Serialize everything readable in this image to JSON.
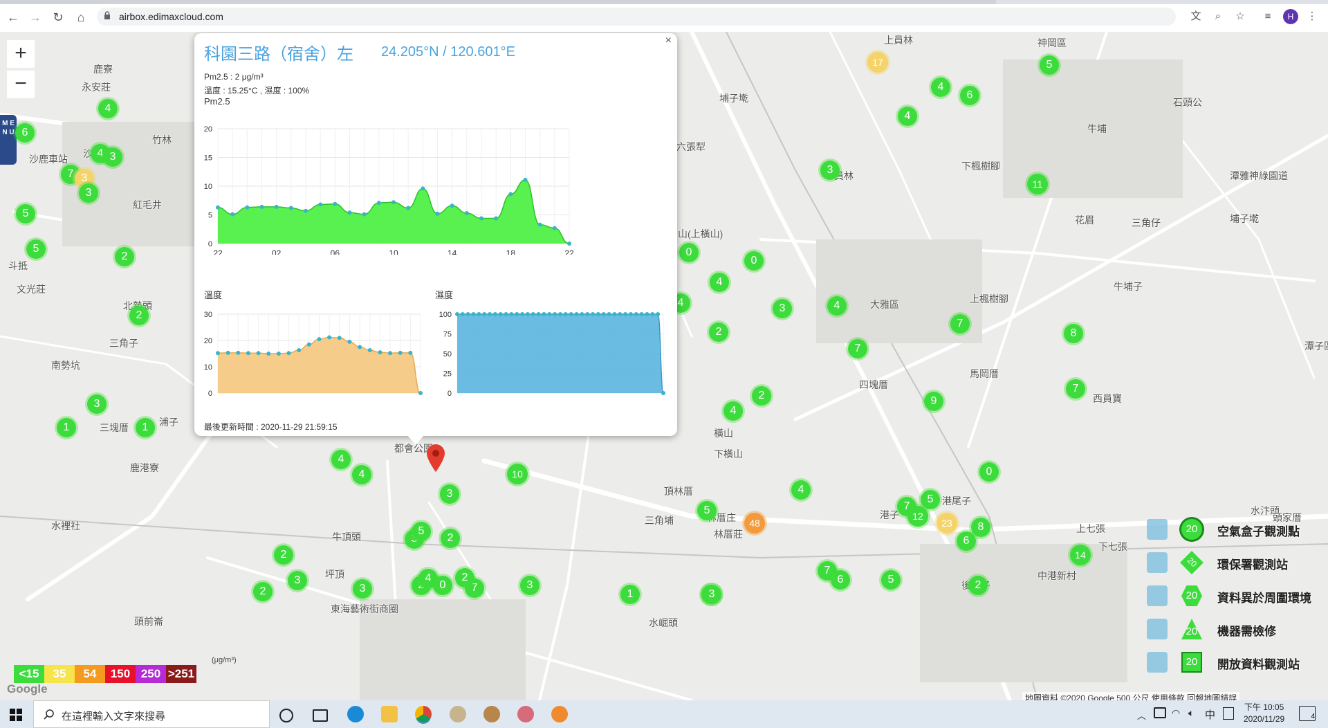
{
  "browser": {
    "url": "airbox.edimaxcloud.com",
    "avatar_letter": "H",
    "icons": [
      "back-icon",
      "forward-icon",
      "reload-icon",
      "home-icon",
      "translate-icon",
      "zoom-icon",
      "star-icon",
      "reading-list-icon",
      "kebab-menu-icon"
    ]
  },
  "map": {
    "zoom_in": "+",
    "zoom_out": "−",
    "menu_label": "M E N U",
    "places": [
      {
        "text": "鹿寮"
      },
      {
        "text": "永安莊"
      },
      {
        "text": "竹林"
      },
      {
        "text": "沙鹿車站"
      },
      {
        "text": "沙鹿"
      },
      {
        "text": "紅毛井"
      },
      {
        "text": "斗抵"
      },
      {
        "text": "文光莊"
      },
      {
        "text": "北勢頭"
      },
      {
        "text": "三角子"
      },
      {
        "text": "南勢坑"
      },
      {
        "text": "三塊厝"
      },
      {
        "text": "浦子"
      },
      {
        "text": "鹿港寮"
      },
      {
        "text": "水裡社"
      },
      {
        "text": "牛頂頭"
      },
      {
        "text": "坪頂"
      },
      {
        "text": "東海藝術街商圈"
      },
      {
        "text": "頭前崙"
      },
      {
        "text": "都會公園"
      },
      {
        "text": "頂林厝"
      },
      {
        "text": "三角埔"
      },
      {
        "text": "林厝庄"
      },
      {
        "text": "林厝莊"
      },
      {
        "text": "水崛頭"
      },
      {
        "text": "港子"
      },
      {
        "text": "港尾子"
      },
      {
        "text": "後莊子"
      },
      {
        "text": "中港新村"
      },
      {
        "text": "上七張"
      },
      {
        "text": "下七張"
      },
      {
        "text": "水汴頭"
      },
      {
        "text": "頭家厝"
      },
      {
        "text": "上員林"
      },
      {
        "text": "神岡區"
      },
      {
        "text": "石頭公"
      },
      {
        "text": "牛埔"
      },
      {
        "text": "埔子墘"
      },
      {
        "text": "六張犁"
      },
      {
        "text": "下員林"
      },
      {
        "text": "下楓樹腳"
      },
      {
        "text": "潭雅神綠園道"
      },
      {
        "text": "秀山(上橫山)"
      },
      {
        "text": "花眉"
      },
      {
        "text": "三角仔"
      },
      {
        "text": "埔子墘"
      },
      {
        "text": "大雅區"
      },
      {
        "text": "上楓樹腳"
      },
      {
        "text": "牛埔子"
      },
      {
        "text": "馬岡厝"
      },
      {
        "text": "四塊厝"
      },
      {
        "text": "西員寶"
      },
      {
        "text": "橫山"
      },
      {
        "text": "下橫山"
      },
      {
        "text": "潭子區"
      }
    ],
    "markers": [
      {
        "v": "4",
        "c": "green"
      },
      {
        "v": "6",
        "c": "green"
      },
      {
        "v": "4",
        "c": "green"
      },
      {
        "v": "3",
        "c": "green"
      },
      {
        "v": "7",
        "c": "green"
      },
      {
        "v": "3",
        "c": "yellow"
      },
      {
        "v": "3",
        "c": "green"
      },
      {
        "v": "5",
        "c": "green"
      },
      {
        "v": "5",
        "c": "green"
      },
      {
        "v": "2",
        "c": "green"
      },
      {
        "v": "2",
        "c": "green"
      },
      {
        "v": "3",
        "c": "green"
      },
      {
        "v": "1",
        "c": "green"
      },
      {
        "v": "1",
        "c": "green"
      },
      {
        "v": "2",
        "c": "green"
      },
      {
        "v": "4",
        "c": "green"
      },
      {
        "v": "4",
        "c": "green"
      },
      {
        "v": "3",
        "c": "green"
      },
      {
        "v": "2",
        "c": "green"
      },
      {
        "v": "3",
        "c": "green"
      },
      {
        "v": "3",
        "c": "green"
      },
      {
        "v": "2",
        "c": "green"
      },
      {
        "v": "3",
        "c": "green"
      },
      {
        "v": "5",
        "c": "green"
      },
      {
        "v": "2",
        "c": "green"
      },
      {
        "v": "4",
        "c": "green"
      },
      {
        "v": "0",
        "c": "green"
      },
      {
        "v": "7",
        "c": "green"
      },
      {
        "v": "2",
        "c": "green"
      },
      {
        "v": "3",
        "c": "green"
      },
      {
        "v": "10",
        "c": "green"
      },
      {
        "v": "2",
        "c": "green"
      },
      {
        "v": "1",
        "c": "green"
      },
      {
        "v": "3",
        "c": "green"
      },
      {
        "v": "2",
        "c": "green"
      },
      {
        "v": "1",
        "c": "green"
      },
      {
        "v": "0",
        "c": "green"
      },
      {
        "v": "0",
        "c": "green"
      },
      {
        "v": "0",
        "c": "green"
      },
      {
        "v": "4",
        "c": "green"
      },
      {
        "v": "4",
        "c": "green"
      },
      {
        "v": "2",
        "c": "green"
      },
      {
        "v": "3",
        "c": "green"
      },
      {
        "v": "4",
        "c": "green"
      },
      {
        "v": "7",
        "c": "green"
      },
      {
        "v": "2",
        "c": "green"
      },
      {
        "v": "4",
        "c": "green"
      },
      {
        "v": "9",
        "c": "green"
      },
      {
        "v": "4",
        "c": "green"
      },
      {
        "v": "5",
        "c": "green"
      },
      {
        "v": "48",
        "c": "orange"
      },
      {
        "v": "7",
        "c": "green"
      },
      {
        "v": "6",
        "c": "green"
      },
      {
        "v": "5",
        "c": "green"
      },
      {
        "v": "3",
        "c": "green"
      },
      {
        "v": "17",
        "c": "yellow"
      },
      {
        "v": "4",
        "c": "green"
      },
      {
        "v": "6",
        "c": "green"
      },
      {
        "v": "4",
        "c": "green"
      },
      {
        "v": "5",
        "c": "green"
      },
      {
        "v": "3",
        "c": "green"
      },
      {
        "v": "11",
        "c": "green"
      },
      {
        "v": "7",
        "c": "green"
      },
      {
        "v": "8",
        "c": "green"
      },
      {
        "v": "7",
        "c": "green"
      },
      {
        "v": "5",
        "c": "green"
      },
      {
        "v": "7",
        "c": "green"
      },
      {
        "v": "12",
        "c": "green"
      },
      {
        "v": "23",
        "c": "yellow"
      },
      {
        "v": "8",
        "c": "green"
      },
      {
        "v": "6",
        "c": "green"
      },
      {
        "v": "0",
        "c": "green"
      },
      {
        "v": "2",
        "c": "green"
      },
      {
        "v": "14",
        "c": "green"
      },
      {
        "v": "2",
        "c": "green"
      },
      {
        "v": "1",
        "c": "green"
      }
    ],
    "popup": {
      "title": "科園三路（宿舍）左",
      "coord": "24.205°N / 120.601°E",
      "pm_line": "Pm2.5 : 2 μg/m³",
      "temp_line": "溫度 : 15.25°C , 濕度 : 100%",
      "chart1_label": "Pm2.5",
      "chart2_label": "溫度",
      "chart3_label": "濕度",
      "updated": "最後更新時間 : 2020-11-29 21:59:15",
      "close": "×"
    },
    "aqi_legend": {
      "unit": "(μg/m³)",
      "cells": [
        {
          "text": "<15",
          "color": "#3ddc3d"
        },
        {
          "text": "35",
          "color": "#f7e34a"
        },
        {
          "text": "54",
          "color": "#f49a1e"
        },
        {
          "text": "150",
          "color": "#e8102b"
        },
        {
          "text": "250",
          "color": "#b52bd6"
        },
        {
          "text": ">251",
          "color": "#8b1a1a"
        }
      ]
    },
    "type_legend": [
      {
        "badge": "20",
        "label": "空氣盒子觀測點",
        "shape": "circle"
      },
      {
        "badge": "20",
        "label": "環保署觀測站",
        "shape": "diamond"
      },
      {
        "badge": "20",
        "label": "資料異於周圍環境",
        "shape": "hexagon"
      },
      {
        "badge": "20",
        "label": "機器需檢修",
        "shape": "triangle"
      },
      {
        "badge": "20",
        "label": "開放資料觀測站",
        "shape": "square"
      }
    ],
    "attribution": "地圖資料 ©2020 Google   500 公尺   使用條款   回報地圖錯誤",
    "google": "Google"
  },
  "chart_data": [
    {
      "type": "area",
      "title": "Pm2.5",
      "x_tick_labels": [
        "22",
        "02",
        "06",
        "10",
        "14",
        "18",
        "22"
      ],
      "ylim": [
        0,
        20
      ],
      "y_ticks": [
        0,
        5,
        10,
        15,
        20
      ],
      "color": "#46f03c",
      "values": [
        6.3,
        5.1,
        6.3,
        6.4,
        6.4,
        6.2,
        5.7,
        6.8,
        6.9,
        5.4,
        5.1,
        7.1,
        7.2,
        6.2,
        9.6,
        5.2,
        6.6,
        5.3,
        4.4,
        4.4,
        8.6,
        11.1,
        3.3,
        2.7,
        0
      ]
    },
    {
      "type": "area",
      "title": "溫度",
      "ylim": [
        0,
        30
      ],
      "y_ticks": [
        0,
        10,
        20,
        30
      ],
      "color": "#f5c77e",
      "values": [
        15.2,
        15.3,
        15.3,
        15.2,
        15.2,
        15,
        15,
        15.2,
        16.3,
        18.5,
        20.5,
        21.2,
        21,
        19.5,
        17.5,
        16.3,
        15.5,
        15.2,
        15.3,
        15.3,
        0
      ]
    },
    {
      "type": "area",
      "title": "濕度",
      "ylim": [
        0,
        100
      ],
      "y_ticks": [
        0,
        25,
        50,
        75,
        100
      ],
      "color": "#5bb5e0",
      "values": [
        100,
        100,
        100,
        100,
        100,
        100,
        100,
        100,
        100,
        100,
        100,
        100,
        100,
        100,
        100,
        100,
        100,
        100,
        100,
        100,
        100,
        100,
        100,
        100,
        100,
        100,
        100,
        100,
        100,
        100,
        100,
        100,
        100,
        100,
        100,
        100,
        100,
        100,
        0
      ]
    }
  ],
  "taskbar": {
    "search_text": "在這裡輸入文字來搜尋",
    "time": "下午 10:05",
    "date": "2020/11/29",
    "ime": "中",
    "notif": "4"
  }
}
